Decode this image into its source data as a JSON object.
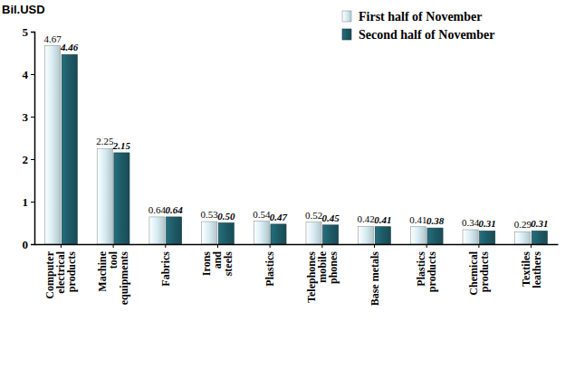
{
  "chart_data": {
    "type": "bar",
    "y_label": "Bil.USD",
    "categories": [
      "Computer\nelectrical\nproducts",
      "Machine\ntool\nequipments",
      "Fabrics",
      "Irons\nand\nsteels",
      "Plastics",
      "Telephones\nmobile\nphones",
      "Base metals",
      "Plastics\nproducts",
      "Chemical\nproducts",
      "Textiles\nleathers"
    ],
    "series": [
      {
        "name": "First half of November",
        "color": "#d6ecf2",
        "values": [
          4.67,
          2.25,
          0.64,
          0.53,
          0.54,
          0.52,
          0.42,
          0.41,
          0.34,
          0.29
        ],
        "value_labels": [
          "4.67",
          "2.25",
          "0.64",
          "0.53",
          "0.54",
          "0.52",
          "0.42",
          "0.41",
          "0.34",
          "0.29"
        ]
      },
      {
        "name": "Second half of November",
        "color": "#1e5a66",
        "values": [
          4.46,
          2.15,
          0.64,
          0.5,
          0.47,
          0.45,
          0.41,
          0.38,
          0.31,
          0.31
        ],
        "value_labels": [
          "4.46",
          "2.15",
          "0.64",
          "0.50",
          "0.47",
          "0.45",
          "0.41",
          "0.38",
          "0.31",
          "0.31"
        ]
      }
    ],
    "ylim": [
      0,
      5
    ],
    "yticks": [
      0,
      1,
      2,
      3,
      4,
      5
    ],
    "grid": false,
    "legend": "top-right",
    "data_labels": true
  }
}
